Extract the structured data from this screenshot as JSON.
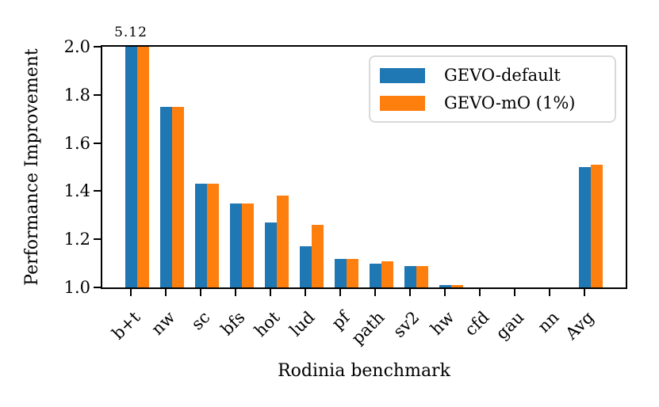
{
  "chart_data": {
    "type": "bar",
    "title": "",
    "xlabel": "Rodinia benchmark",
    "ylabel": "Performance Improvement",
    "categories": [
      "b+t",
      "nw",
      "sc",
      "bfs",
      "hot",
      "lud",
      "pf",
      "path",
      "sv2",
      "hw",
      "cfd",
      "gau",
      "nn",
      "Avg"
    ],
    "series": [
      {
        "name": "GEVO-default",
        "color": "#1f77b4",
        "values": [
          5.12,
          1.75,
          1.43,
          1.35,
          1.27,
          1.17,
          1.12,
          1.1,
          1.09,
          1.01,
          1.0,
          1.0,
          1.0,
          1.5
        ]
      },
      {
        "name": "GEVO-mO (1%)",
        "color": "#ff7f0e",
        "values": [
          5.12,
          1.75,
          1.43,
          1.35,
          1.38,
          1.26,
          1.12,
          1.11,
          1.09,
          1.01,
          1.0,
          1.0,
          1.0,
          1.51
        ]
      }
    ],
    "ylim": [
      1.0,
      2.0
    ],
    "ytick_labels": [
      "1.0",
      "1.2",
      "1.4",
      "1.6",
      "1.8",
      "2.0"
    ],
    "grid": false,
    "legend_position": "upper right",
    "annotation": {
      "text": "5.12",
      "category": "b+t"
    }
  }
}
